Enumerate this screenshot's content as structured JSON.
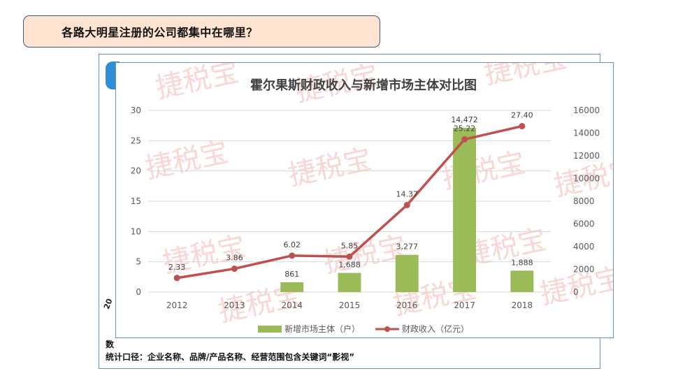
{
  "slide": {
    "heading": "各路大明星注册的公司都集中在哪里？",
    "back_partial_vertical": "20",
    "back_partial_source": "数",
    "footnote": "统计口径：企业名称、品牌/产品名称、经营范围包含关键词“影视”"
  },
  "watermark": {
    "text": "捷税宝"
  },
  "chart_data": {
    "type": "bar",
    "title": "霍尔果斯财政收入与新增市场主体对比图",
    "categories": [
      "2012",
      "2013",
      "2014",
      "2015",
      "2016",
      "2017",
      "2018"
    ],
    "series": [
      {
        "name": "新增市场主体（户）",
        "kind": "bar",
        "axis": "right",
        "color": "#9bbb59",
        "values": [
          null,
          null,
          861,
          1688,
          3277,
          14472,
          1888
        ],
        "labels": [
          "",
          "",
          "861",
          "1,688",
          "3,277",
          "14,472",
          "1,888"
        ]
      },
      {
        "name": "财政收入（亿元）",
        "kind": "line",
        "axis": "left",
        "color": "#c0504d",
        "values": [
          2.33,
          3.86,
          6.02,
          5.85,
          14.37,
          25.22,
          27.4
        ],
        "labels": [
          "2.33",
          "3.86",
          "6.02",
          "5.85",
          "14.37",
          "25.22",
          "27.40"
        ]
      }
    ],
    "y_left": {
      "lim": [
        0,
        30
      ],
      "ticks": [
        "0",
        "5",
        "10",
        "15",
        "20",
        "25",
        "30"
      ]
    },
    "y_right": {
      "lim": [
        0,
        16000
      ],
      "ticks": [
        "0",
        "2000",
        "4000",
        "6000",
        "8000",
        "10000",
        "12000",
        "14000",
        "16000"
      ]
    },
    "grid": true,
    "legend": "bottom"
  }
}
